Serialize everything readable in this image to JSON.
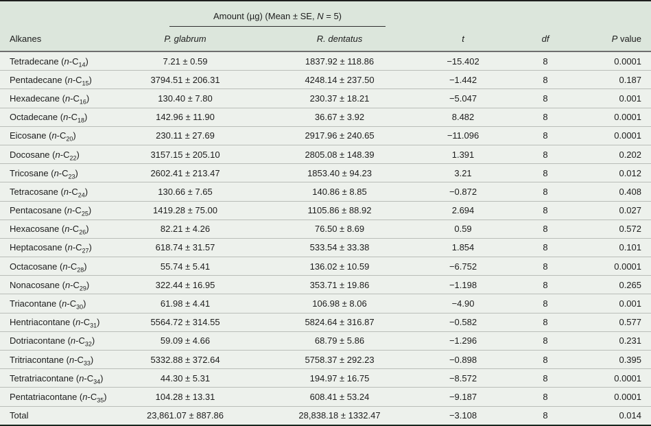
{
  "header": {
    "amount_pre": "Amount (µg) (Mean ± SE,",
    "amount_n": "N",
    "amount_post": "= 5)",
    "columns": {
      "alkanes": "Alkanes",
      "p_glabrum": "P. glabrum",
      "r_dentatus": "R. dentatus",
      "t": "t",
      "df": "df",
      "p_italic": "P",
      "p_rest": "value"
    }
  },
  "formula": {
    "italic": "n",
    "prefix": "-C"
  },
  "colors": {
    "header_bg": "#dce6dc",
    "body_bg": "#edf1ec",
    "top_border": "#1f1f1f",
    "bottom_border": "#18271e",
    "header_divider": "#6e6e6e",
    "row_divider": "#b9bdb8"
  },
  "rows": [
    {
      "alkane": "Tetradecane",
      "sub": "14",
      "p_glabrum": "7.21 ± 0.59",
      "r_dentatus": "1837.92 ± 118.86",
      "t": "−15.402",
      "df": "8",
      "p": "0.0001"
    },
    {
      "alkane": "Pentadecane",
      "sub": "15",
      "p_glabrum": "3794.51 ± 206.31",
      "r_dentatus": "4248.14 ± 237.50",
      "t": "−1.442",
      "df": "8",
      "p": "0.187"
    },
    {
      "alkane": "Hexadecane",
      "sub": "16",
      "p_glabrum": "130.40 ± 7.80",
      "r_dentatus": "230.37 ± 18.21",
      "t": "−5.047",
      "df": "8",
      "p": "0.001"
    },
    {
      "alkane": "Octadecane",
      "sub": "18",
      "p_glabrum": "142.96 ± 11.90",
      "r_dentatus": "36.67 ± 3.92",
      "t": "8.482",
      "df": "8",
      "p": "0.0001"
    },
    {
      "alkane": "Eicosane",
      "sub": "20",
      "p_glabrum": "230.11 ± 27.69",
      "r_dentatus": "2917.96 ± 240.65",
      "t": "−11.096",
      "df": "8",
      "p": "0.0001"
    },
    {
      "alkane": "Docosane",
      "sub": "22",
      "p_glabrum": "3157.15 ± 205.10",
      "r_dentatus": "2805.08 ± 148.39",
      "t": "1.391",
      "df": "8",
      "p": "0.202"
    },
    {
      "alkane": "Tricosane",
      "sub": "23",
      "p_glabrum": "2602.41 ± 213.47",
      "r_dentatus": "1853.40 ± 94.23",
      "t": "3.21",
      "df": "8",
      "p": "0.012"
    },
    {
      "alkane": "Tetracosane",
      "sub": "24",
      "p_glabrum": "130.66 ± 7.65",
      "r_dentatus": "140.86 ± 8.85",
      "t": "−0.872",
      "df": "8",
      "p": "0.408"
    },
    {
      "alkane": "Pentacosane",
      "sub": "25",
      "p_glabrum": "1419.28 ± 75.00",
      "r_dentatus": "1105.86 ± 88.92",
      "t": "2.694",
      "df": "8",
      "p": "0.027"
    },
    {
      "alkane": "Hexacosane",
      "sub": "26",
      "p_glabrum": "82.21 ± 4.26",
      "r_dentatus": "76.50 ± 8.69",
      "t": "0.59",
      "df": "8",
      "p": "0.572"
    },
    {
      "alkane": "Heptacosane",
      "sub": "27",
      "p_glabrum": "618.74 ± 31.57",
      "r_dentatus": "533.54 ± 33.38",
      "t": "1.854",
      "df": "8",
      "p": "0.101"
    },
    {
      "alkane": "Octacosane",
      "sub": "28",
      "p_glabrum": "55.74 ± 5.41",
      "r_dentatus": "136.02 ± 10.59",
      "t": "−6.752",
      "df": "8",
      "p": "0.0001"
    },
    {
      "alkane": "Nonacosane",
      "sub": "29",
      "p_glabrum": "322.44 ± 16.95",
      "r_dentatus": "353.71 ± 19.86",
      "t": "−1.198",
      "df": "8",
      "p": "0.265"
    },
    {
      "alkane": "Triacontane",
      "sub": "30",
      "p_glabrum": "61.98 ± 4.41",
      "r_dentatus": "106.98 ± 8.06",
      "t": "−4.90",
      "df": "8",
      "p": "0.001"
    },
    {
      "alkane": "Hentriacontane",
      "sub": "31",
      "p_glabrum": "5564.72 ± 314.55",
      "r_dentatus": "5824.64 ± 316.87",
      "t": "−0.582",
      "df": "8",
      "p": "0.577"
    },
    {
      "alkane": "Dotriacontane",
      "sub": "32",
      "p_glabrum": "59.09 ± 4.66",
      "r_dentatus": "68.79 ± 5.86",
      "t": "−1.296",
      "df": "8",
      "p": "0.231"
    },
    {
      "alkane": "Tritriacontane",
      "sub": "33",
      "p_glabrum": "5332.88 ± 372.64",
      "r_dentatus": "5758.37 ± 292.23",
      "t": "−0.898",
      "df": "8",
      "p": "0.395"
    },
    {
      "alkane": "Tetratriacontane",
      "sub": "34",
      "p_glabrum": "44.30 ± 5.31",
      "r_dentatus": "194.97 ± 16.75",
      "t": "−8.572",
      "df": "8",
      "p": "0.0001"
    },
    {
      "alkane": "Pentatriacontane",
      "sub": "35",
      "p_glabrum": "104.28 ± 13.31",
      "r_dentatus": "608.41 ± 53.24",
      "t": "−9.187",
      "df": "8",
      "p": "0.0001"
    },
    {
      "alkane": "Total",
      "sub": null,
      "p_glabrum": "23,861.07 ± 887.86",
      "r_dentatus": "28,838.18 ± 1332.47",
      "t": "−3.108",
      "df": "8",
      "p": "0.014"
    }
  ]
}
